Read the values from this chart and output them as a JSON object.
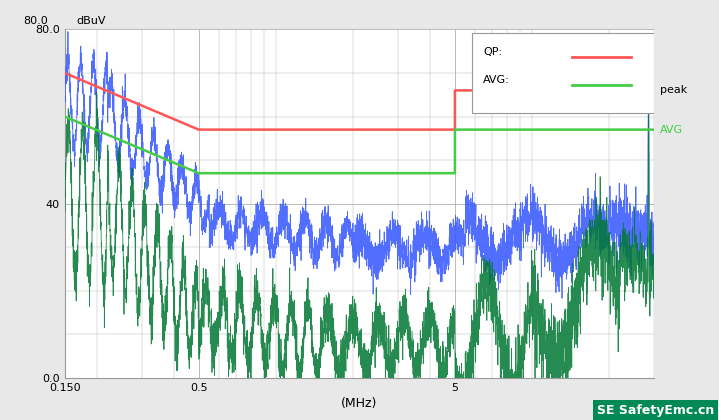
{
  "xlabel": "(MHz)",
  "ylabel": "dBuV",
  "xmin": 0.15,
  "xmax": 30,
  "ymin": 0,
  "ymax": 80,
  "bg_color": "#e8e8e8",
  "plot_bg": "#ffffff",
  "grid_color": "#b0b0b0",
  "watermark_text": "SE SafetyEmc.cn",
  "watermark_bg": "#008855",
  "peak_label": "peak",
  "avg_label": "AVG",
  "legend_items": [
    "QP:",
    "AVG:"
  ],
  "legend_colors": [
    "#ff5555",
    "#44cc44"
  ],
  "red_limit_x": [
    0.15,
    0.5,
    0.5,
    5.0,
    5.0,
    30
  ],
  "red_limit_y": [
    70,
    57,
    57,
    57,
    66,
    66
  ],
  "green_limit_x": [
    0.15,
    0.5,
    0.5,
    5.0,
    5.0,
    30
  ],
  "green_limit_y": [
    60,
    47,
    47,
    47,
    57,
    57
  ]
}
